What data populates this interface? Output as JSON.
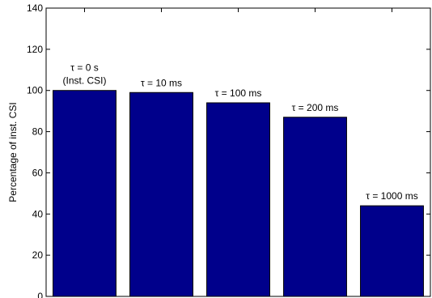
{
  "chart_data": {
    "type": "bar",
    "categories": [
      "τ = 0 s (Inst. CSI)",
      "τ = 10 ms",
      "τ = 100 ms",
      "τ = 200 ms",
      "τ = 1000 ms"
    ],
    "values": [
      100,
      99,
      94,
      87,
      44
    ],
    "annotations": [
      [
        "τ = 0 s",
        "(Inst. CSI)"
      ],
      [
        "τ = 10 ms"
      ],
      [
        "τ = 100 ms"
      ],
      [
        "τ = 200 ms"
      ],
      [
        "τ = 1000 ms"
      ]
    ],
    "title": "",
    "xlabel": "",
    "ylabel": "Percentage of inst. CSI",
    "ylim": [
      0,
      140
    ],
    "yticks": [
      0,
      20,
      40,
      60,
      80,
      100,
      120,
      140
    ],
    "grid": false,
    "bar_color": "#00008B"
  }
}
